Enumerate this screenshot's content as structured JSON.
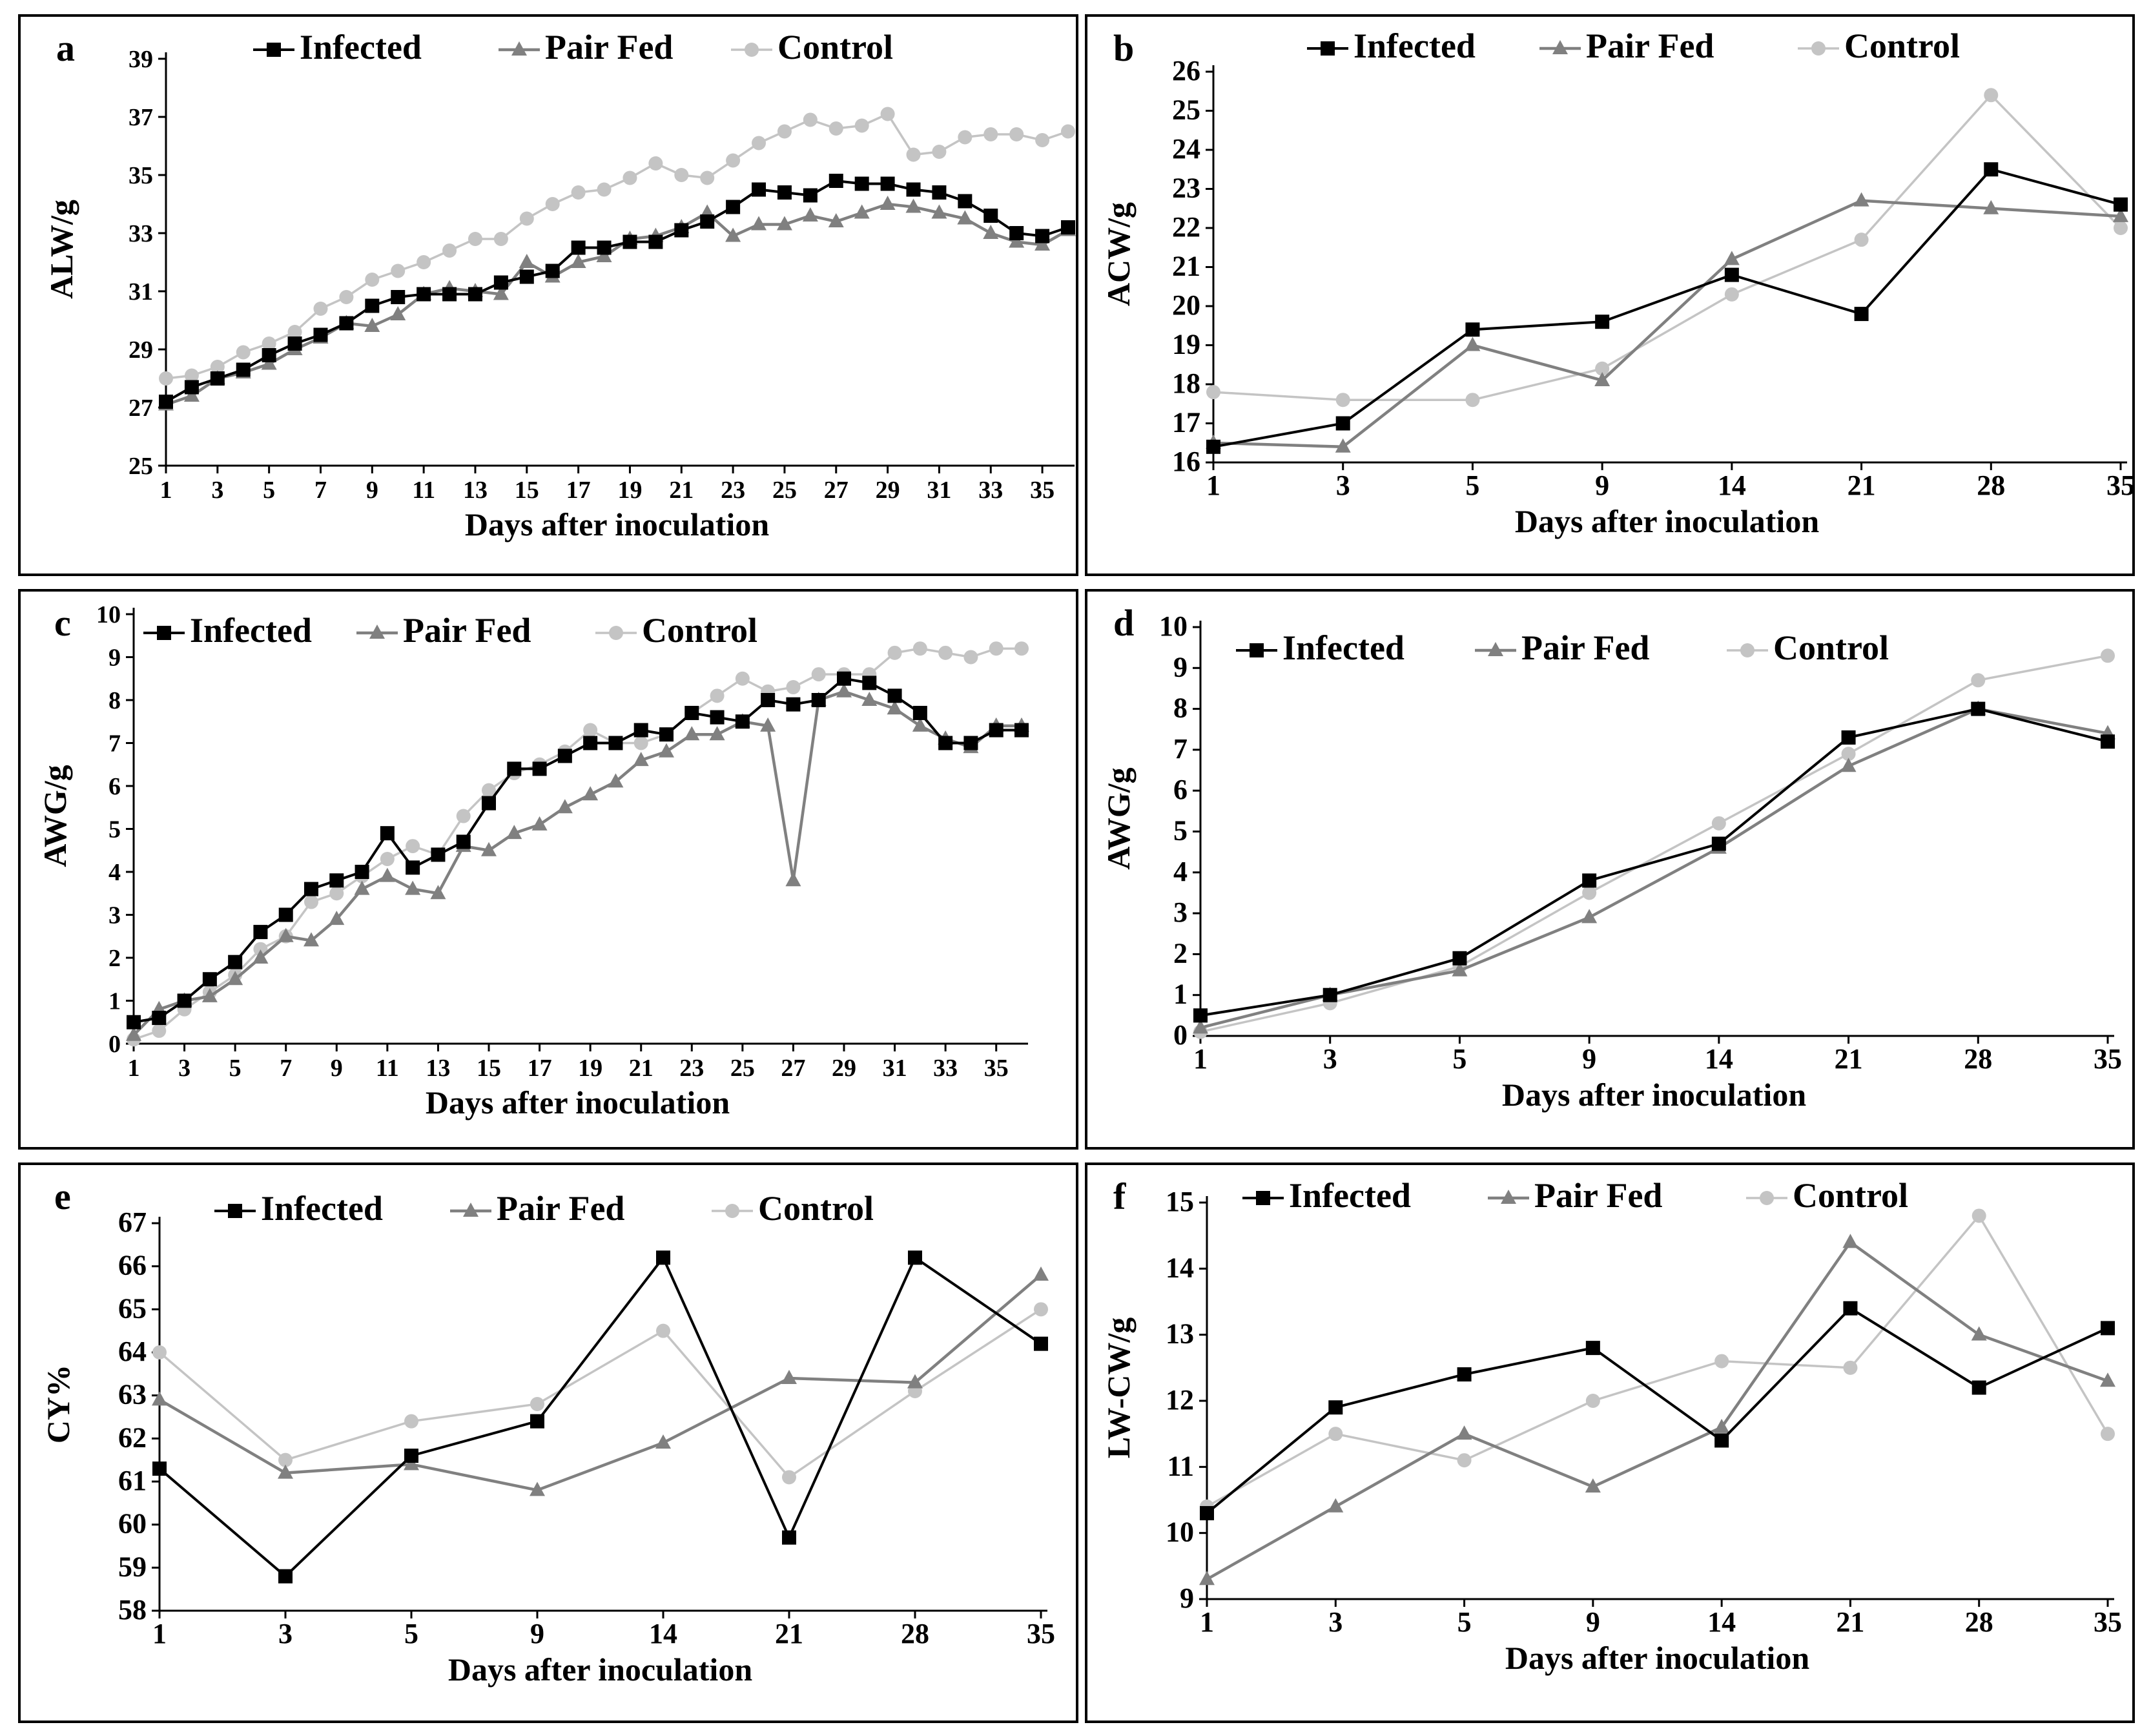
{
  "legend": {
    "infected": "Infected",
    "pairfed": "Pair Fed",
    "control": "Control"
  },
  "colors": {
    "infected": "#000000",
    "pairfed": "#808080",
    "control": "#c4c4c4"
  },
  "chart_data": [
    {
      "id": "a",
      "type": "line",
      "panel_label": "a",
      "scale": "linear",
      "xlabel": "Days after inoculation",
      "ylabel": "ALW/g",
      "x": [
        1,
        2,
        3,
        4,
        5,
        6,
        7,
        8,
        9,
        10,
        11,
        12,
        13,
        14,
        15,
        16,
        17,
        18,
        19,
        20,
        21,
        22,
        23,
        24,
        25,
        26,
        27,
        28,
        29,
        30,
        31,
        32,
        33,
        34,
        35,
        36
      ],
      "xticks": [
        "1",
        "3",
        "5",
        "7",
        "9",
        "11",
        "13",
        "15",
        "17",
        "19",
        "21",
        "23",
        "25",
        "27",
        "29",
        "31",
        "33",
        "35"
      ],
      "xtick_values": [
        1,
        3,
        5,
        7,
        9,
        11,
        13,
        15,
        17,
        19,
        21,
        23,
        25,
        27,
        29,
        31,
        33,
        35
      ],
      "ylim": [
        25,
        39
      ],
      "yticks": [
        "25",
        "27",
        "29",
        "31",
        "33",
        "35",
        "37",
        "39"
      ],
      "ytick_values": [
        25,
        27,
        29,
        31,
        33,
        35,
        37,
        39
      ],
      "series": [
        {
          "name": "Infected",
          "values": [
            27.2,
            27.7,
            28.0,
            28.3,
            28.8,
            29.2,
            29.5,
            29.9,
            30.5,
            30.8,
            30.9,
            30.9,
            30.9,
            31.3,
            31.5,
            31.7,
            32.5,
            32.5,
            32.7,
            32.7,
            33.1,
            33.4,
            33.9,
            34.5,
            34.4,
            34.3,
            34.8,
            34.7,
            34.7,
            34.5,
            34.4,
            34.1,
            33.6,
            33.0,
            32.9,
            33.2
          ]
        },
        {
          "name": "Pair Fed",
          "values": [
            27.1,
            27.4,
            28.0,
            28.2,
            28.5,
            29.0,
            29.4,
            29.9,
            29.8,
            30.2,
            30.9,
            31.1,
            31.0,
            30.9,
            32.0,
            31.5,
            32.0,
            32.2,
            32.8,
            32.9,
            33.2,
            33.7,
            32.9,
            33.3,
            33.3,
            33.6,
            33.4,
            33.7,
            34.0,
            33.9,
            33.7,
            33.5,
            33.0,
            32.7,
            32.6,
            33.1
          ]
        },
        {
          "name": "Control",
          "values": [
            28.0,
            28.1,
            28.4,
            28.9,
            29.2,
            29.6,
            30.4,
            30.8,
            31.4,
            31.7,
            32.0,
            32.4,
            32.8,
            32.8,
            33.5,
            34.0,
            34.4,
            34.5,
            34.9,
            35.4,
            35.0,
            34.9,
            35.5,
            36.1,
            36.5,
            36.9,
            36.6,
            36.7,
            37.1,
            35.7,
            35.8,
            36.3,
            36.4,
            36.4,
            36.2,
            36.5
          ]
        }
      ]
    },
    {
      "id": "b",
      "type": "line",
      "panel_label": "b",
      "scale": "category",
      "xlabel": "Days after inoculation",
      "ylabel": "ACW/g",
      "categories": [
        "1",
        "3",
        "5",
        "9",
        "14",
        "21",
        "28",
        "35"
      ],
      "ylim": [
        16,
        26
      ],
      "yticks": [
        "16",
        "17",
        "18",
        "19",
        "20",
        "21",
        "22",
        "23",
        "24",
        "25",
        "26"
      ],
      "ytick_values": [
        16,
        17,
        18,
        19,
        20,
        21,
        22,
        23,
        24,
        25,
        26
      ],
      "series": [
        {
          "name": "Infected",
          "values": [
            16.4,
            17.0,
            19.4,
            19.6,
            20.8,
            19.8,
            23.5,
            22.6
          ]
        },
        {
          "name": "Pair Fed",
          "values": [
            16.5,
            16.4,
            19.0,
            18.1,
            21.2,
            22.7,
            22.5,
            22.3
          ]
        },
        {
          "name": "Control",
          "values": [
            17.8,
            17.6,
            17.6,
            18.4,
            20.3,
            21.7,
            25.4,
            22.0
          ]
        }
      ]
    },
    {
      "id": "c",
      "type": "line",
      "panel_label": "c",
      "scale": "linear",
      "xlabel": "Days after inoculation",
      "ylabel": "AWG/g",
      "x": [
        1,
        2,
        3,
        4,
        5,
        6,
        7,
        8,
        9,
        10,
        11,
        12,
        13,
        14,
        15,
        16,
        17,
        18,
        19,
        20,
        21,
        22,
        23,
        24,
        25,
        26,
        27,
        28,
        29,
        30,
        31,
        32,
        33,
        34,
        35,
        36
      ],
      "xticks": [
        "1",
        "3",
        "5",
        "7",
        "9",
        "11",
        "13",
        "15",
        "17",
        "19",
        "21",
        "23",
        "25",
        "27",
        "29",
        "31",
        "33",
        "35"
      ],
      "xtick_values": [
        1,
        3,
        5,
        7,
        9,
        11,
        13,
        15,
        17,
        19,
        21,
        23,
        25,
        27,
        29,
        31,
        33,
        35
      ],
      "ylim": [
        0,
        10
      ],
      "yticks": [
        "0",
        "1",
        "2",
        "3",
        "4",
        "5",
        "6",
        "7",
        "8",
        "9",
        "10"
      ],
      "ytick_values": [
        0,
        1,
        2,
        3,
        4,
        5,
        6,
        7,
        8,
        9,
        10
      ],
      "series": [
        {
          "name": "Infected",
          "values": [
            0.5,
            0.6,
            1.0,
            1.5,
            1.9,
            2.6,
            3.0,
            3.6,
            3.8,
            4.0,
            4.9,
            4.1,
            4.4,
            4.7,
            5.6,
            6.4,
            6.4,
            6.7,
            7.0,
            7.0,
            7.3,
            7.2,
            7.7,
            7.6,
            7.5,
            8.0,
            7.9,
            8.0,
            8.5,
            8.4,
            8.1,
            7.7,
            7.0,
            7.0,
            7.3,
            7.3
          ]
        },
        {
          "name": "Pair Fed",
          "values": [
            0.2,
            0.8,
            1.0,
            1.1,
            1.5,
            2.0,
            2.5,
            2.4,
            2.9,
            3.6,
            3.9,
            3.6,
            3.5,
            4.6,
            4.5,
            4.9,
            5.1,
            5.5,
            5.8,
            6.1,
            6.6,
            6.8,
            7.2,
            7.2,
            7.5,
            7.4,
            3.8,
            8.0,
            8.2,
            8.0,
            7.8,
            7.4,
            7.1,
            6.9,
            7.4,
            7.4
          ]
        },
        {
          "name": "Control",
          "values": [
            0.1,
            0.3,
            0.8,
            1.2,
            1.6,
            2.2,
            2.5,
            3.3,
            3.5,
            3.9,
            4.3,
            4.6,
            4.4,
            5.3,
            5.9,
            6.3,
            6.5,
            6.8,
            7.3,
            7.0,
            7.0,
            7.2,
            7.7,
            8.1,
            8.5,
            8.2,
            8.3,
            8.6,
            8.6,
            8.6,
            9.1,
            9.2,
            9.1,
            9.0,
            9.2,
            9.2
          ]
        }
      ]
    },
    {
      "id": "d",
      "type": "line",
      "panel_label": "d",
      "scale": "category",
      "xlabel": "Days after inoculation",
      "ylabel": "AWG/g",
      "categories": [
        "1",
        "3",
        "5",
        "9",
        "14",
        "21",
        "28",
        "35"
      ],
      "ylim": [
        0,
        10
      ],
      "yticks": [
        "0",
        "1",
        "2",
        "3",
        "4",
        "5",
        "6",
        "7",
        "8",
        "9",
        "10"
      ],
      "ytick_values": [
        0,
        1,
        2,
        3,
        4,
        5,
        6,
        7,
        8,
        9,
        10
      ],
      "series": [
        {
          "name": "Infected",
          "values": [
            0.5,
            1.0,
            1.9,
            3.8,
            4.7,
            7.3,
            8.0,
            7.2
          ]
        },
        {
          "name": "Pair Fed",
          "values": [
            0.2,
            1.0,
            1.6,
            2.9,
            4.6,
            6.6,
            8.0,
            7.4
          ]
        },
        {
          "name": "Control",
          "values": [
            0.1,
            0.8,
            1.7,
            3.5,
            5.2,
            6.9,
            8.7,
            9.3
          ]
        }
      ]
    },
    {
      "id": "e",
      "type": "line",
      "panel_label": "e",
      "scale": "category",
      "xlabel": "Days after inoculation",
      "ylabel": "CY%",
      "categories": [
        "1",
        "3",
        "5",
        "9",
        "14",
        "21",
        "28",
        "35"
      ],
      "ylim": [
        58,
        67
      ],
      "yticks": [
        "58",
        "59",
        "60",
        "61",
        "62",
        "63",
        "64",
        "65",
        "66",
        "67"
      ],
      "ytick_values": [
        58,
        59,
        60,
        61,
        62,
        63,
        64,
        65,
        66,
        67
      ],
      "series": [
        {
          "name": "Infected",
          "values": [
            61.3,
            58.8,
            61.6,
            62.4,
            66.2,
            59.7,
            66.2,
            64.2
          ]
        },
        {
          "name": "Pair Fed",
          "values": [
            62.9,
            61.2,
            61.4,
            60.8,
            61.9,
            63.4,
            63.3,
            65.8
          ]
        },
        {
          "name": "Control",
          "values": [
            64.0,
            61.5,
            62.4,
            62.8,
            64.5,
            61.1,
            63.1,
            65.0
          ]
        }
      ]
    },
    {
      "id": "f",
      "type": "line",
      "panel_label": "f",
      "scale": "category",
      "xlabel": "Days after inoculation",
      "ylabel": "LW-CW/g",
      "categories": [
        "1",
        "3",
        "5",
        "9",
        "14",
        "21",
        "28",
        "35"
      ],
      "ylim": [
        9,
        15
      ],
      "yticks": [
        "9",
        "10",
        "11",
        "12",
        "13",
        "14",
        "15"
      ],
      "ytick_values": [
        9,
        10,
        11,
        12,
        13,
        14,
        15
      ],
      "series": [
        {
          "name": "Infected",
          "values": [
            10.3,
            11.9,
            12.4,
            12.8,
            11.4,
            13.4,
            12.2,
            13.1
          ]
        },
        {
          "name": "Pair Fed",
          "values": [
            9.3,
            10.4,
            11.5,
            10.7,
            11.6,
            14.4,
            13.0,
            12.3
          ]
        },
        {
          "name": "Control",
          "values": [
            10.4,
            11.5,
            11.1,
            12.0,
            12.6,
            12.5,
            14.8,
            11.5
          ]
        }
      ]
    }
  ]
}
